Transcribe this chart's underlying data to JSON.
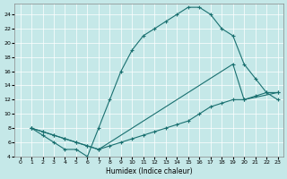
{
  "xlabel": "Humidex (Indice chaleur)",
  "xlim": [
    -0.5,
    23.5
  ],
  "ylim": [
    4,
    25.5
  ],
  "yticks": [
    4,
    6,
    8,
    10,
    12,
    14,
    16,
    18,
    20,
    22,
    24
  ],
  "xticks": [
    0,
    1,
    2,
    3,
    4,
    5,
    6,
    7,
    8,
    9,
    10,
    11,
    12,
    13,
    14,
    15,
    16,
    17,
    18,
    19,
    20,
    21,
    22,
    23
  ],
  "bg_color": "#c5e8e8",
  "line_color": "#1a7070",
  "curve1_x": [
    1,
    2,
    3,
    4,
    5,
    6,
    7,
    8,
    9,
    10,
    11,
    12,
    13,
    14,
    15,
    16,
    17,
    18,
    19,
    20,
    21,
    22,
    23
  ],
  "curve1_y": [
    8,
    7,
    6,
    5,
    5,
    4,
    8,
    12,
    16,
    19,
    21,
    22,
    23,
    24,
    25,
    25,
    24,
    22,
    21,
    17,
    15,
    13,
    12
  ],
  "curve2_x": [
    1,
    2,
    3,
    4,
    5,
    6,
    7,
    19,
    20,
    23
  ],
  "curve2_y": [
    8,
    7.5,
    7,
    6.5,
    6,
    5.5,
    5,
    17,
    12,
    13
  ],
  "curve3_x": [
    1,
    2,
    3,
    4,
    5,
    6,
    7,
    8,
    9,
    10,
    11,
    12,
    13,
    14,
    15,
    16,
    17,
    18,
    19,
    20,
    21,
    22,
    23
  ],
  "curve3_y": [
    8,
    7.5,
    7,
    6.5,
    6,
    5.5,
    5,
    5.5,
    6,
    6.5,
    7,
    7.5,
    8,
    8.5,
    9,
    10,
    11,
    11.5,
    12,
    12,
    12.5,
    13,
    13
  ]
}
